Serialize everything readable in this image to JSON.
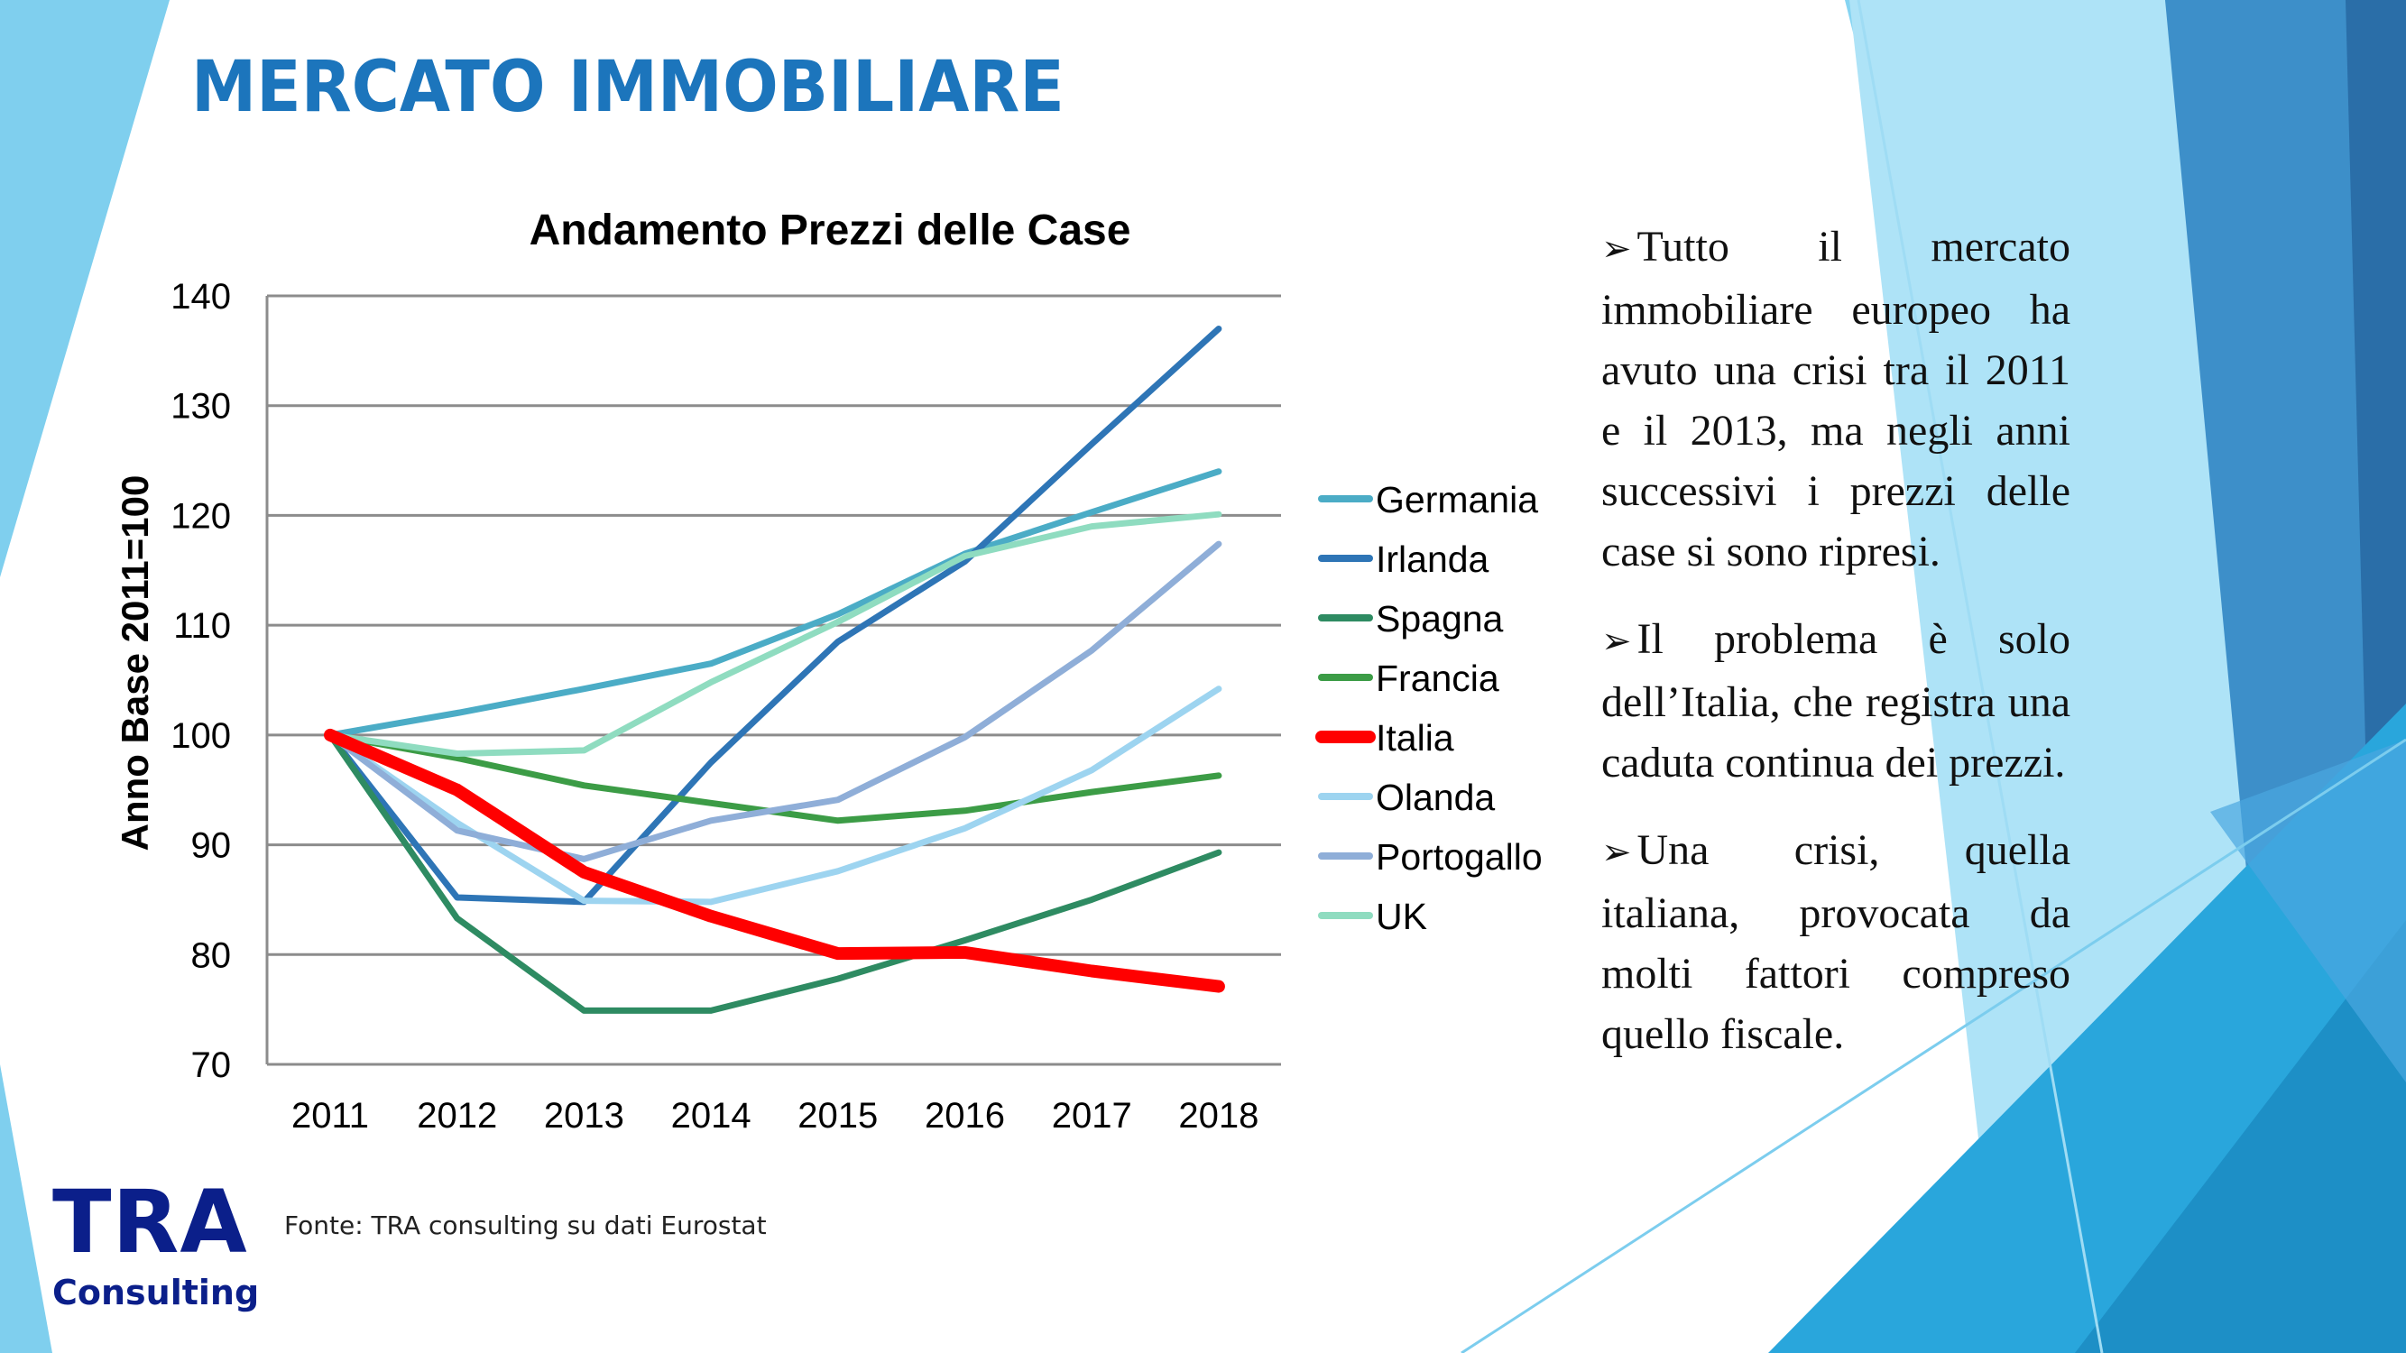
{
  "slide": {
    "title": "MERCATO IMMOBILIARE",
    "source": "Fonte: TRA consulting su dati Eurostat",
    "logo": {
      "line1": "TRA",
      "line2": "Consulting",
      "color": "#0b1f8a"
    },
    "accent": "#1c75bc",
    "bullets": [
      "Tutto il mercato immobiliare europeo ha avuto una crisi tra il 2011 e il 2013, ma negli anni successivi i prezzi delle case si sono ripresi.",
      "Il problema è solo dell’Italia, che registra una caduta continua dei prezzi.",
      "Una crisi, quella italiana, provocata da molti fattori compreso quello fiscale."
    ],
    "bullet_icon": "arrow-right-icon"
  },
  "chart_data": {
    "type": "line",
    "title": "Andamento Prezzi delle Case",
    "xlabel": "",
    "ylabel": "Anno Base 2011=100",
    "categories": [
      "2011",
      "2012",
      "2013",
      "2014",
      "2015",
      "2016",
      "2017",
      "2018"
    ],
    "ylim": [
      70,
      140
    ],
    "yticks": [
      70,
      80,
      90,
      100,
      110,
      120,
      130,
      140
    ],
    "grid": true,
    "legend": "right",
    "series": [
      {
        "name": "Germania",
        "color": "#4bacc6",
        "values": [
          100,
          102,
          104.2,
          106.5,
          111,
          116.5,
          120.3,
          124
        ]
      },
      {
        "name": "Irlanda",
        "color": "#2e75b6",
        "values": [
          100,
          85.2,
          84.8,
          97.5,
          108.5,
          115.8,
          126.5,
          137
        ]
      },
      {
        "name": "Spagna",
        "color": "#2e8b62",
        "values": [
          100,
          83.3,
          74.9,
          74.9,
          77.8,
          81.3,
          85,
          89.3
        ]
      },
      {
        "name": "Francia",
        "color": "#3c9c46",
        "values": [
          100,
          97.9,
          95.4,
          93.8,
          92.2,
          93.1,
          94.8,
          96.3
        ]
      },
      {
        "name": "Italia",
        "color": "#ff0000",
        "values": [
          100,
          95,
          87.5,
          83.5,
          80.1,
          80.2,
          78.5,
          77.1
        ]
      },
      {
        "name": "Olanda",
        "color": "#9dd4f0",
        "values": [
          100,
          92,
          84.9,
          84.8,
          87.6,
          91.5,
          96.8,
          104.2
        ]
      },
      {
        "name": "Portogallo",
        "color": "#8faed8",
        "values": [
          100,
          91.3,
          88.7,
          92.2,
          94.1,
          99.8,
          107.7,
          117.4
        ]
      },
      {
        "name": "UK",
        "color": "#8fdcc0",
        "values": [
          100,
          98.3,
          98.6,
          104.8,
          110.3,
          116.3,
          119,
          120.1
        ]
      }
    ]
  }
}
